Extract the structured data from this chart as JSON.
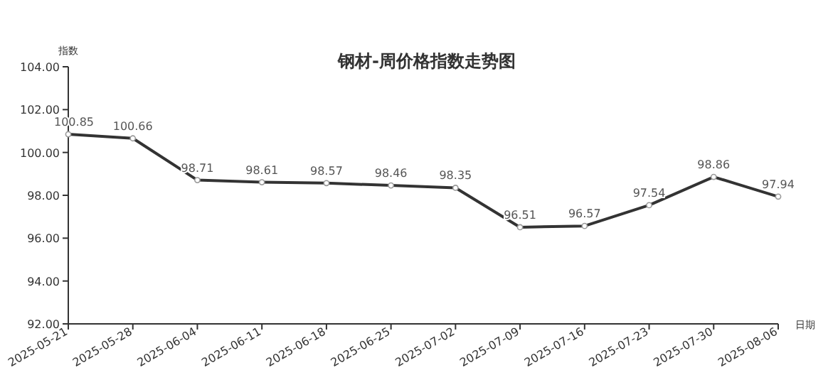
{
  "chart_data": {
    "type": "line",
    "title": "钢材-周价格指数走势图",
    "xlabel": "日期",
    "ylabel": "指数",
    "categories": [
      "2025-05-21",
      "2025-05-28",
      "2025-06-04",
      "2025-06-11",
      "2025-06-18",
      "2025-06-25",
      "2025-07-02",
      "2025-07-09",
      "2025-07-16",
      "2025-07-23",
      "2025-07-30",
      "2025-08-06"
    ],
    "series": [
      {
        "color": "#333333",
        "values": [
          100.85,
          100.66,
          98.71,
          98.61,
          98.57,
          98.46,
          98.35,
          96.51,
          96.57,
          97.54,
          98.86,
          97.94
        ]
      }
    ],
    "ylim": [
      92,
      104
    ],
    "yticks": [
      {
        "value": 92,
        "label": "92.00"
      },
      {
        "value": 94,
        "label": "94.00"
      },
      {
        "value": 96,
        "label": "96.00"
      },
      {
        "value": 98,
        "label": "98.00"
      },
      {
        "value": 100,
        "label": "100.00"
      },
      {
        "value": 102,
        "label": "102.00"
      },
      {
        "value": 104,
        "label": "104.00"
      }
    ],
    "data_labels": true,
    "marker": "circle",
    "grid": false
  }
}
